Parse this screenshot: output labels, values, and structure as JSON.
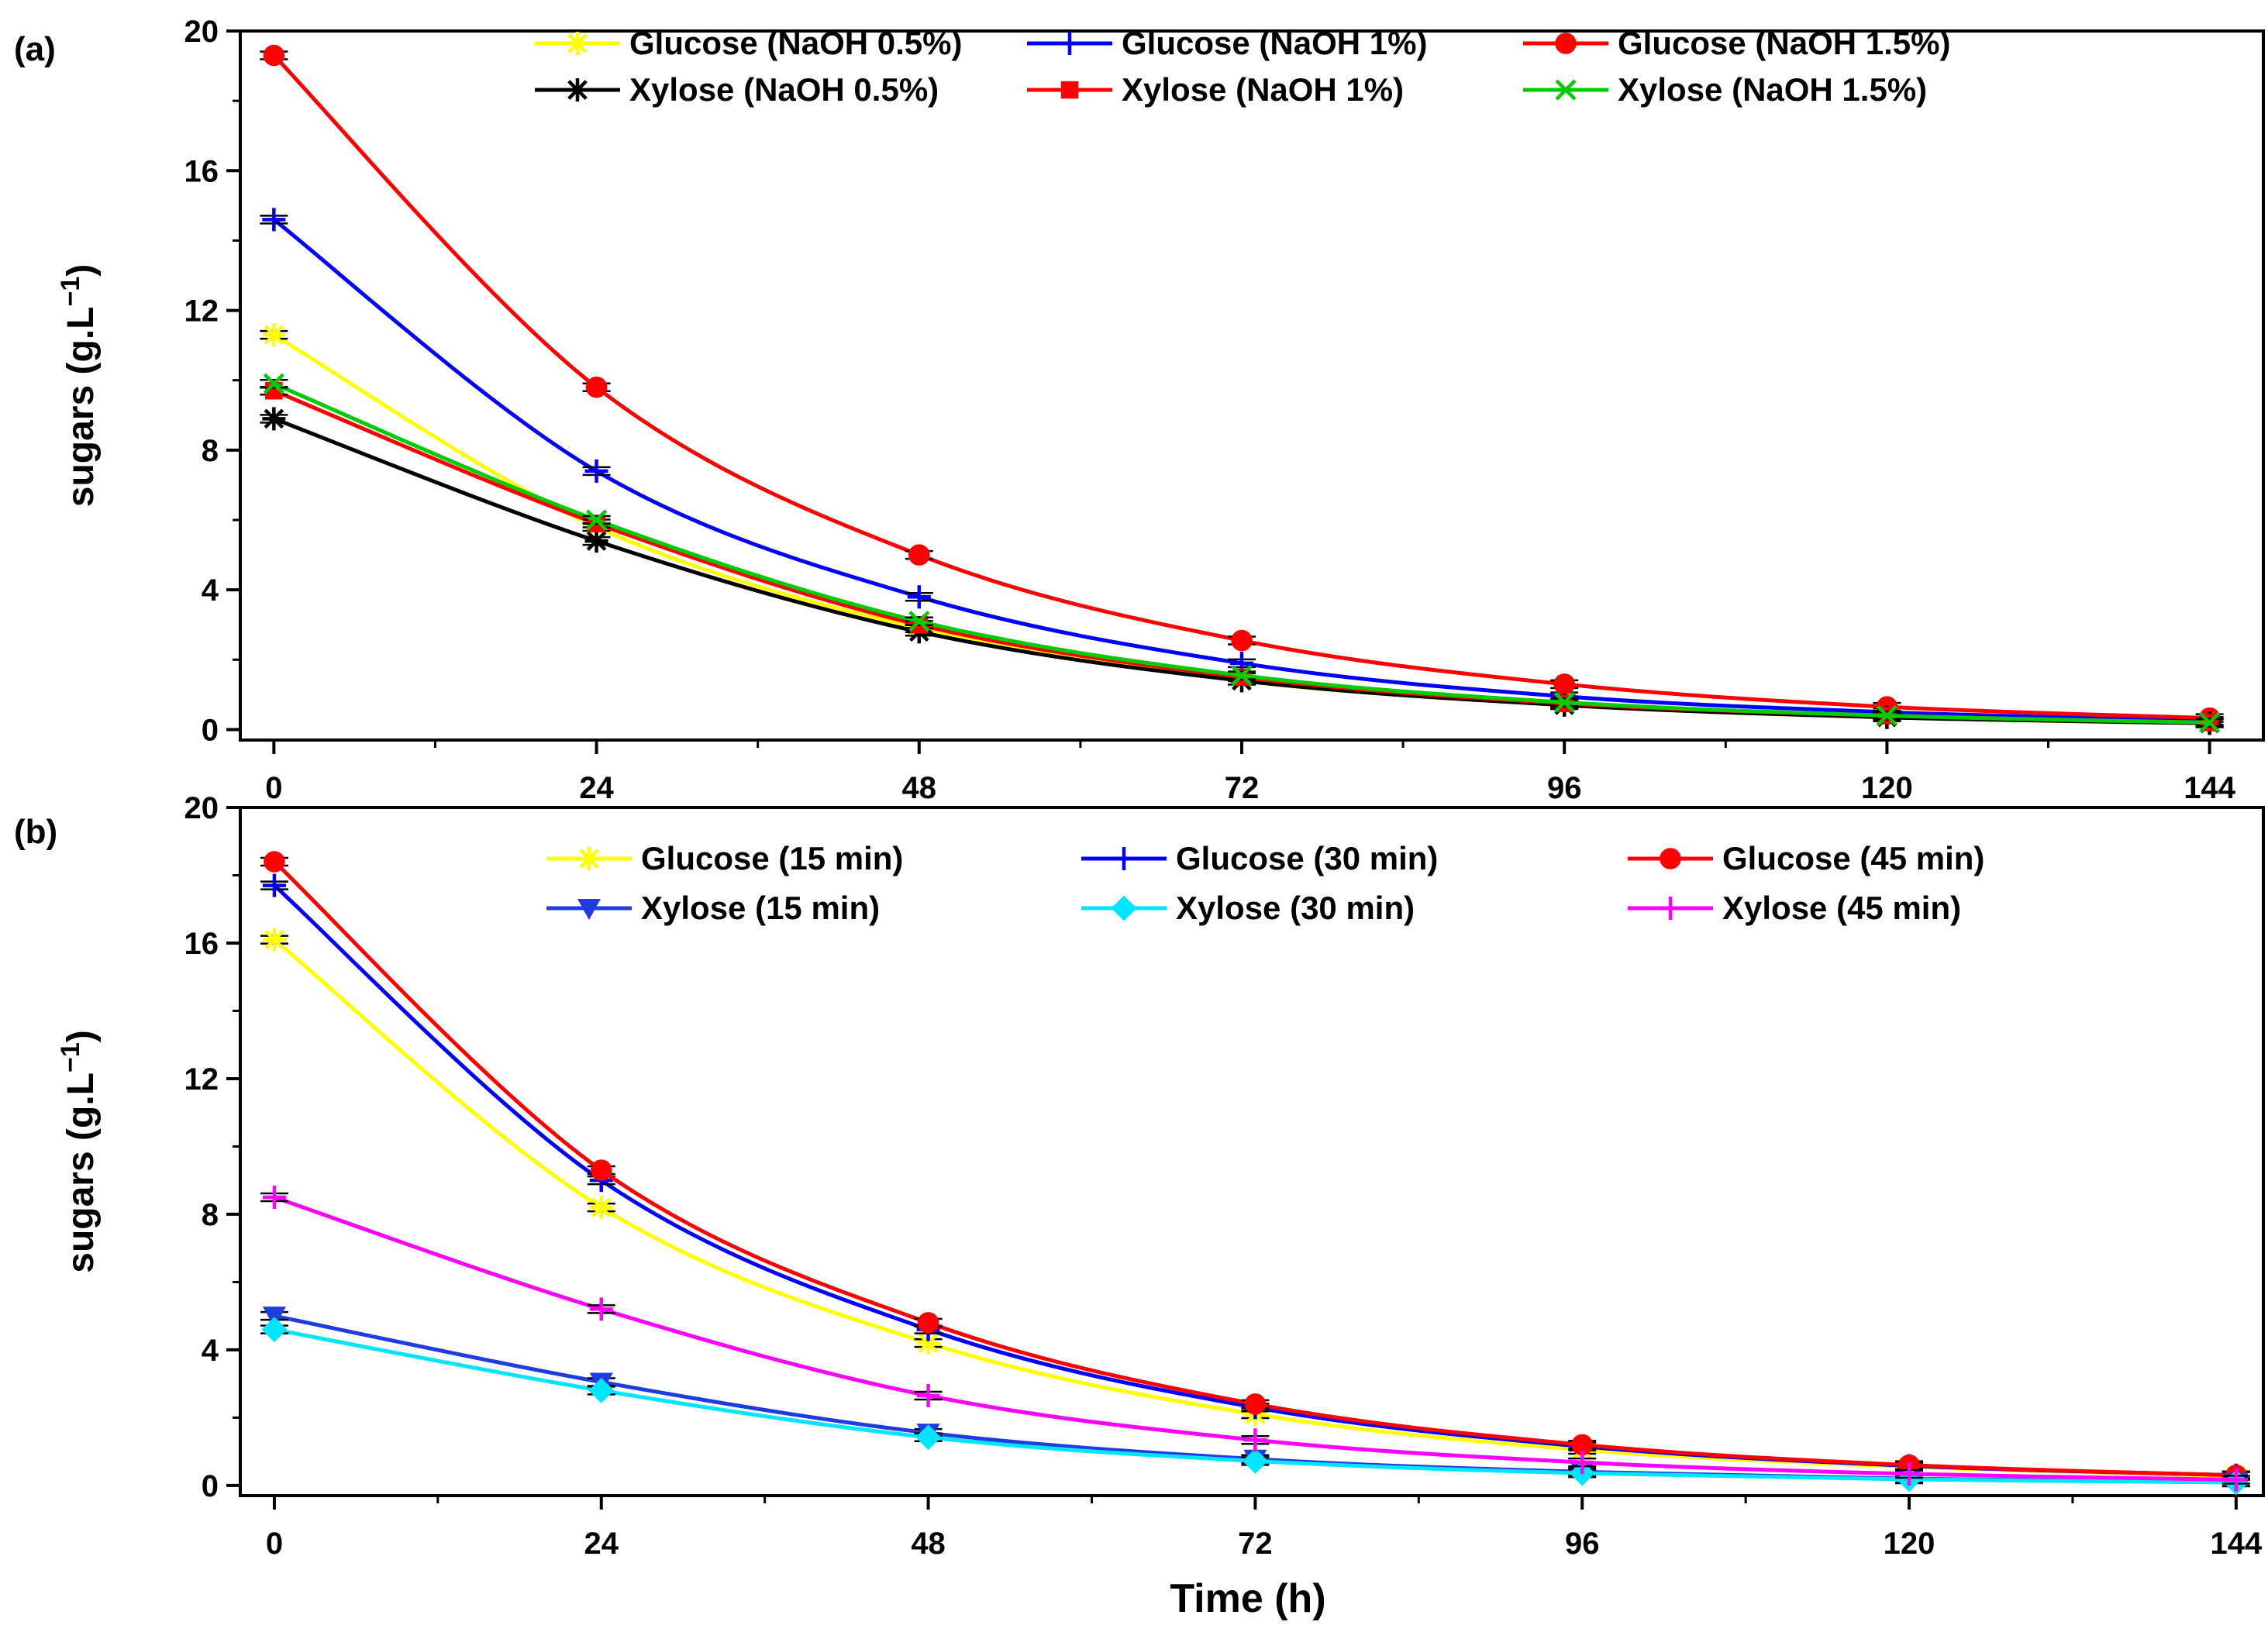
{
  "figure": {
    "x_axis_label": "Time (h)"
  },
  "chart_data": [
    {
      "type": "line",
      "panel_label": "(a)",
      "title": "",
      "xlabel": "",
      "ylabel": "sugars (g.L",
      "ylabel_superscript": "−1",
      "ylabel_close": ")",
      "x": [
        0,
        24,
        48,
        72,
        96,
        120,
        144
      ],
      "x_ticks": [
        0,
        24,
        48,
        72,
        96,
        120,
        144
      ],
      "y_ticks": [
        0,
        4,
        8,
        12,
        16,
        20
      ],
      "xlim": [
        -2.5,
        148
      ],
      "ylim": [
        -0.3,
        20
      ],
      "legend_position": "top",
      "series": [
        {
          "name": "Glucose (NaOH 0.5%)",
          "color": "#ffff00",
          "marker": "star",
          "values": [
            11.3,
            5.8,
            2.9,
            1.4,
            0.7,
            0.35,
            0.18
          ]
        },
        {
          "name": "Glucose (NaOH 1%)",
          "color": "#0000ff",
          "marker": "plus",
          "values": [
            14.6,
            7.4,
            3.8,
            1.9,
            0.95,
            0.5,
            0.25
          ]
        },
        {
          "name": "Glucose (NaOH 1.5%)",
          "color": "#ff0000",
          "marker": "circle",
          "values": [
            19.3,
            9.8,
            5.0,
            2.55,
            1.3,
            0.65,
            0.33
          ]
        },
        {
          "name": "Xylose (NaOH 0.5%)",
          "color": "#000000",
          "marker": "star",
          "values": [
            8.9,
            5.4,
            2.8,
            1.4,
            0.7,
            0.35,
            0.18
          ]
        },
        {
          "name": "Xylose (NaOH 1%)",
          "color": "#ff0000",
          "marker": "square",
          "values": [
            9.7,
            5.9,
            3.0,
            1.5,
            0.75,
            0.4,
            0.2
          ]
        },
        {
          "name": "Xylose (NaOH 1.5%)",
          "color": "#00cc00",
          "marker": "x",
          "values": [
            9.9,
            6.0,
            3.1,
            1.55,
            0.78,
            0.4,
            0.2
          ]
        }
      ]
    },
    {
      "type": "line",
      "panel_label": "(b)",
      "title": "",
      "xlabel": "Time (h)",
      "ylabel": "sugars (g.L",
      "ylabel_superscript": "−1",
      "ylabel_close": ")",
      "x": [
        0,
        24,
        48,
        72,
        96,
        120,
        144
      ],
      "x_ticks": [
        0,
        24,
        48,
        72,
        96,
        120,
        144
      ],
      "y_ticks": [
        0,
        4,
        8,
        12,
        16,
        20
      ],
      "xlim": [
        -2.5,
        146
      ],
      "ylim": [
        -0.3,
        20
      ],
      "legend_position": "top",
      "series": [
        {
          "name": "Glucose (15 min)",
          "color": "#ffff00",
          "marker": "star",
          "values": [
            16.1,
            8.2,
            4.2,
            2.1,
            1.05,
            0.55,
            0.28
          ]
        },
        {
          "name": "Glucose (30 min)",
          "color": "#0000ff",
          "marker": "plus",
          "values": [
            17.7,
            9.0,
            4.6,
            2.3,
            1.15,
            0.58,
            0.3
          ]
        },
        {
          "name": "Glucose (45 min)",
          "color": "#ff0000",
          "marker": "circle",
          "values": [
            18.4,
            9.3,
            4.8,
            2.4,
            1.2,
            0.6,
            0.3
          ]
        },
        {
          "name": "Xylose (15 min)",
          "color": "#1e3ce0",
          "marker": "triangle-down",
          "values": [
            5.0,
            3.05,
            1.55,
            0.78,
            0.4,
            0.2,
            0.1
          ]
        },
        {
          "name": "Xylose (30 min)",
          "color": "#00e5ff",
          "marker": "diamond",
          "values": [
            4.6,
            2.8,
            1.42,
            0.72,
            0.36,
            0.18,
            0.09
          ]
        },
        {
          "name": "Xylose (45 min)",
          "color": "#ff00ff",
          "marker": "plus",
          "values": [
            8.5,
            5.2,
            2.65,
            1.34,
            0.68,
            0.34,
            0.17
          ]
        }
      ]
    }
  ]
}
